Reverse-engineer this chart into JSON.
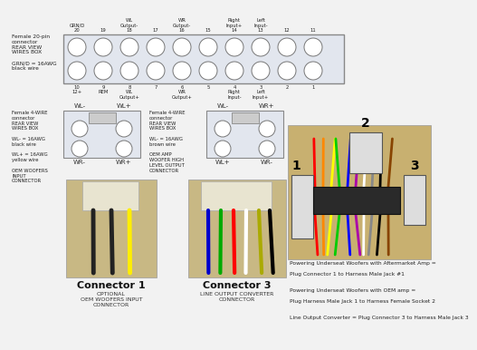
{
  "bg_color": "#f2f2f2",
  "top_connector_label": "Female 20-pin\nconnector\nREAR VIEW\nWIRES BOX\n\nGRN/D = 16AWG\nblack wire",
  "top_pins_top": [
    "GRN/D\n20",
    "19",
    "WL\nOutput-\n18",
    "17",
    "WR\nOutput-\n16",
    "15",
    "Right\nInput+\n14",
    "Left\nInput-\n13",
    "12",
    "11"
  ],
  "top_pins_bot": [
    "10\n12+",
    "9\nREM",
    "8\nWL\nOutput+",
    "7",
    "6\nWR\nOutput+",
    "5",
    "4\nRight\nInput-",
    "3\nLeft\nInput+",
    "2",
    "1"
  ],
  "left4_label": "Female 4-WIRE\nconnector\nREAR VIEW\nWIRES BOX\n\nWL- = 16AWG\nblack wire\n\nWL+ = 16AWG\nyellow wire\n\nOEM WOOFERS\nINPUT\nCONNECTOR",
  "left4_top": [
    "WL-",
    "WL+"
  ],
  "left4_bot": [
    "WR-",
    "WR+"
  ],
  "right4_label": "Female 4-WIRE\nconnector\nREAR VIEW\nWIRES BOX\n\nWL- = 16AWG\nbrown wire\n\nOEM AMP\nWOOFER HIGH\nLEVEL OUTPUT\nCONNECTOR",
  "right4_top": [
    "WL-",
    "WR+"
  ],
  "right4_bot": [
    "WL+",
    "WR-"
  ],
  "connector1_label": "Connector 1",
  "connector1_sub1": "OPTIONAL",
  "connector1_sub2": "OEM WOOFERS INPUT\nCONNECTOR",
  "connector3_label": "Connector 3",
  "connector3_sub1": "LINE OUTPUT CONVERTER\nCONNECTOR",
  "notes": [
    "Powering Underseat Woofers with Aftermarket Amp =",
    "Plug Connector 1 to Harness Male Jack #1",
    "",
    "Powering Underseat Woofers with OEM amp =",
    "Plug Harness Male Jack 1 to Harness Female Socket 2",
    "",
    "Line Output Converter = Plug Connector 3 to Harness Male Jack 3"
  ],
  "box_fc": "#e2e6ee",
  "box_ec": "#888888",
  "circle_fc": "#ffffff",
  "circle_ec": "#777777",
  "text_color": "#222222",
  "wire1_colors": [
    "#000000",
    "#000000",
    "#ffff00"
  ],
  "wire3_colors": [
    "#0000cc",
    "#00aa00",
    "#ff0000",
    "#ffffff",
    "#888800",
    "#000000"
  ],
  "harness_wire_colors": [
    "#ff0000",
    "#ff8800",
    "#ffff00",
    "#00cc00",
    "#0000ff",
    "#aa00aa",
    "#ffffff",
    "#888888",
    "#000000",
    "#884400"
  ]
}
